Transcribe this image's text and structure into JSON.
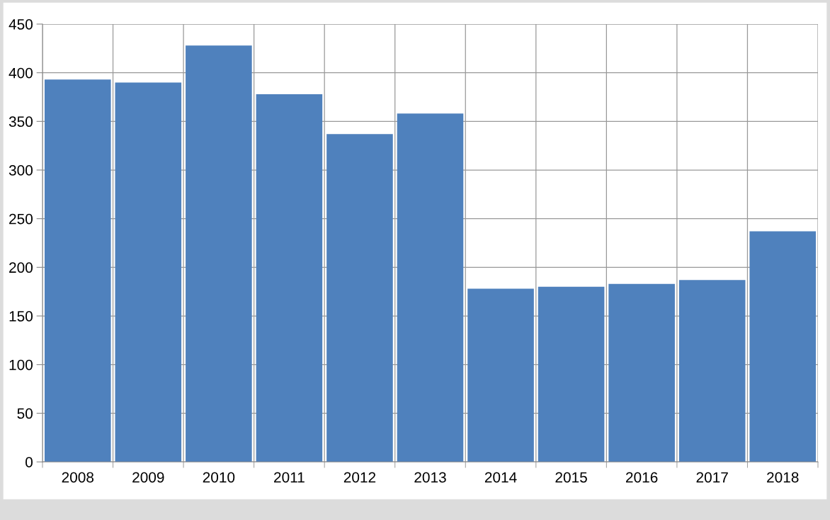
{
  "chart_data": {
    "type": "bar",
    "categories": [
      "2008",
      "2009",
      "2010",
      "2011",
      "2012",
      "2013",
      "2014",
      "2015",
      "2016",
      "2017",
      "2018"
    ],
    "values": [
      393,
      390,
      428,
      378,
      337,
      358,
      178,
      180,
      183,
      187,
      237
    ],
    "color": "#4f81bd",
    "ylim": [
      0,
      450
    ],
    "yticks": [
      0,
      50,
      100,
      150,
      200,
      250,
      300,
      350,
      400,
      450
    ],
    "grid": true
  }
}
